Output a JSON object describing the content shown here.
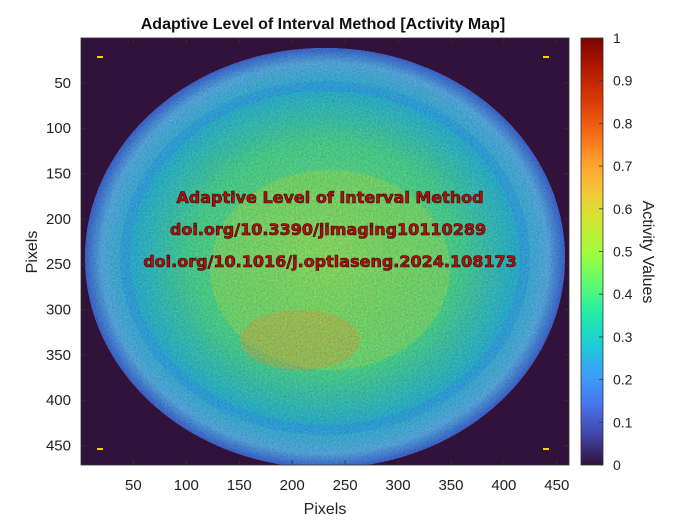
{
  "chart_data": {
    "type": "heatmap",
    "title": "Adaptive Level of Interval Method [Activity Map]",
    "xlabel": "Pixels",
    "ylabel": "Pixels",
    "xlim": [
      1,
      461
    ],
    "ylim": [
      1,
      471
    ],
    "x_ticks": [
      "50",
      "100",
      "150",
      "200",
      "250",
      "300",
      "350",
      "400",
      "450"
    ],
    "x_tick_values": [
      50,
      100,
      150,
      200,
      250,
      300,
      350,
      400,
      450
    ],
    "y_ticks": [
      "50",
      "100",
      "150",
      "200",
      "250",
      "300",
      "350",
      "400",
      "450"
    ],
    "y_tick_values": [
      50,
      100,
      150,
      200,
      250,
      300,
      350,
      400,
      450
    ],
    "y_direction": "reverse",
    "colorbar": {
      "label": "Activity Values",
      "range": [
        0,
        1
      ],
      "ticks": [
        "0",
        "0.1",
        "0.2",
        "0.3",
        "0.4",
        "0.5",
        "0.6",
        "0.7",
        "0.8",
        "0.9",
        "1"
      ],
      "tick_values": [
        0,
        0.1,
        0.2,
        0.3,
        0.4,
        0.5,
        0.6,
        0.7,
        0.8,
        0.9,
        1
      ],
      "colormap": "turbo",
      "colors": [
        "#30123b",
        "#4145ab",
        "#4675ed",
        "#39a2fc",
        "#1bcfd4",
        "#24eca6",
        "#61fc6c",
        "#a4fc3b",
        "#d1e834",
        "#f3c63a",
        "#fe9b2d",
        "#f36315",
        "#d93806",
        "#b11901",
        "#7a0402"
      ]
    },
    "annotations": [
      "Adaptive Level of Interval Method",
      "doi.org/10.3390/jimaging10110289",
      "doi.org/10.1016/j.optlaseng.2024.108173"
    ],
    "content": "Coin-shaped high-activity region (values mostly 0.3–0.7) on a near-zero background"
  }
}
